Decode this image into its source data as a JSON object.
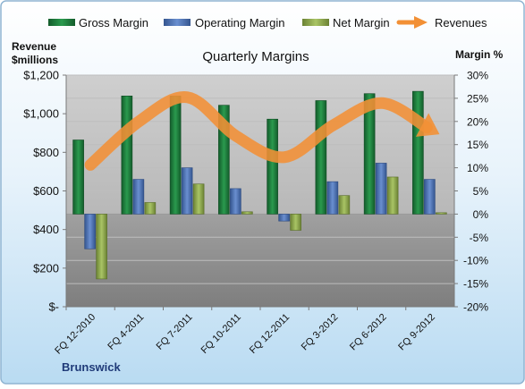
{
  "chart_data": {
    "type": "bar",
    "title": "Quarterly Margins",
    "company": "Brunswick",
    "y_left_label_line1": "Revenue",
    "y_left_label_line2": "$millions",
    "y_right_label": "Margin %",
    "categories": [
      "FQ 12-2010",
      "FQ 4-2011",
      "FQ 7-2011",
      "FQ 10-2011",
      "FQ 12-2011",
      "FQ 3-2012",
      "FQ 6-2012",
      "FQ 9-2012"
    ],
    "y_left_ticks": [
      "$-",
      "$200",
      "$400",
      "$600",
      "$800",
      "$1,000",
      "$1,200"
    ],
    "y_left_range": [
      0,
      1200
    ],
    "y_right_ticks": [
      "-20%",
      "-15%",
      "-10%",
      "-5%",
      "0%",
      "5%",
      "10%",
      "15%",
      "20%",
      "25%",
      "30%"
    ],
    "y_right_range": [
      -20,
      30
    ],
    "series": [
      {
        "name": "Gross Margin",
        "axis": "right",
        "color": "#1e7a3c",
        "values": [
          16,
          25.5,
          25.5,
          23.5,
          20.5,
          24.5,
          26,
          26.5
        ]
      },
      {
        "name": "Operating Margin",
        "axis": "right",
        "color": "#4f74b8",
        "values": [
          -7.5,
          7.5,
          10,
          5.5,
          -1.5,
          7,
          11,
          7.5
        ]
      },
      {
        "name": "Net Margin",
        "axis": "right",
        "color": "#8fa84e",
        "values": [
          -14,
          2.5,
          6.5,
          0.5,
          -3.5,
          4,
          8,
          0.3
        ]
      },
      {
        "name": "Revenues",
        "axis": "left",
        "color": "#f29035",
        "values": [
          735,
          960,
          1085,
          885,
          775,
          940,
          1055,
          920
        ]
      }
    ],
    "grid": true,
    "legend_position": "top"
  },
  "colors": {
    "plot_upper": "#c2c2c2",
    "plot_lower": "#8c8c8c",
    "background_top": "#ffffff",
    "background_bottom": "#b9dbf2",
    "border": "#8fb4d2"
  }
}
